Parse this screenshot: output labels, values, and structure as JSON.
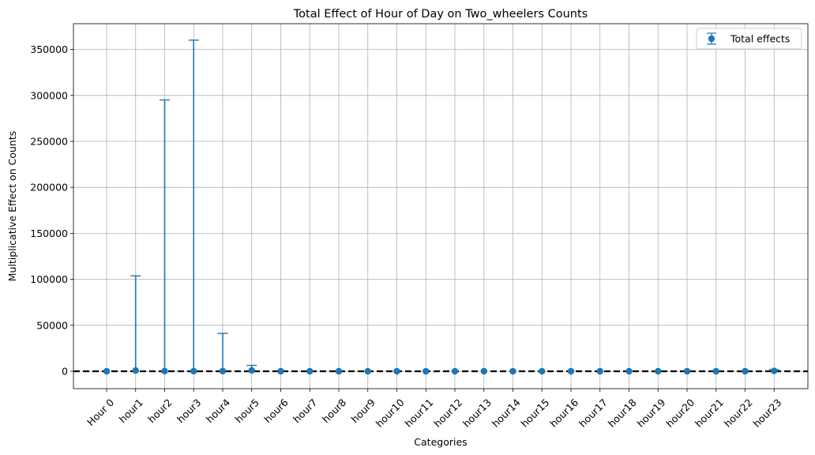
{
  "chart_data": {
    "type": "scatter",
    "title": "Total Effect of Hour of Day on Two_wheelers Counts",
    "xlabel": "Categories",
    "ylabel": "Multiplicative Effect on Counts",
    "categories": [
      "Hour 0",
      "hour1",
      "hour2",
      "hour3",
      "hour4",
      "hour5",
      "hour6",
      "hour7",
      "hour8",
      "hour9",
      "hour10",
      "hour11",
      "hour12",
      "hour13",
      "hour14",
      "hour15",
      "hour16",
      "hour17",
      "hour18",
      "hour19",
      "hour20",
      "hour21",
      "hour22",
      "hour23"
    ],
    "series": [
      {
        "name": "Total effects",
        "values": [
          1,
          800,
          150,
          120,
          200,
          900,
          20,
          15,
          10,
          8,
          7,
          7,
          7,
          7,
          7,
          7,
          7,
          7,
          7,
          7,
          7,
          7,
          7,
          400
        ],
        "error_upper": [
          0,
          103000,
          295000,
          360000,
          41000,
          5500,
          0,
          0,
          0,
          0,
          0,
          0,
          0,
          0,
          0,
          0,
          0,
          0,
          0,
          0,
          0,
          0,
          0,
          1500
        ],
        "error_lower": [
          0,
          0,
          0,
          0,
          0,
          0,
          0,
          0,
          0,
          0,
          0,
          0,
          0,
          0,
          0,
          0,
          0,
          0,
          0,
          0,
          0,
          0,
          0,
          0
        ]
      }
    ],
    "yticks": [
      "0",
      "50000",
      "100000",
      "150000",
      "200000",
      "250000",
      "300000",
      "350000"
    ],
    "ylim": [
      -18900,
      378000
    ],
    "reference_line": {
      "y": 0,
      "style": "dashed",
      "color": "#000000"
    },
    "grid": true,
    "legend_position": "top-right",
    "colors": {
      "series": "#1f77b4",
      "grid": "#b0b0b0"
    }
  }
}
